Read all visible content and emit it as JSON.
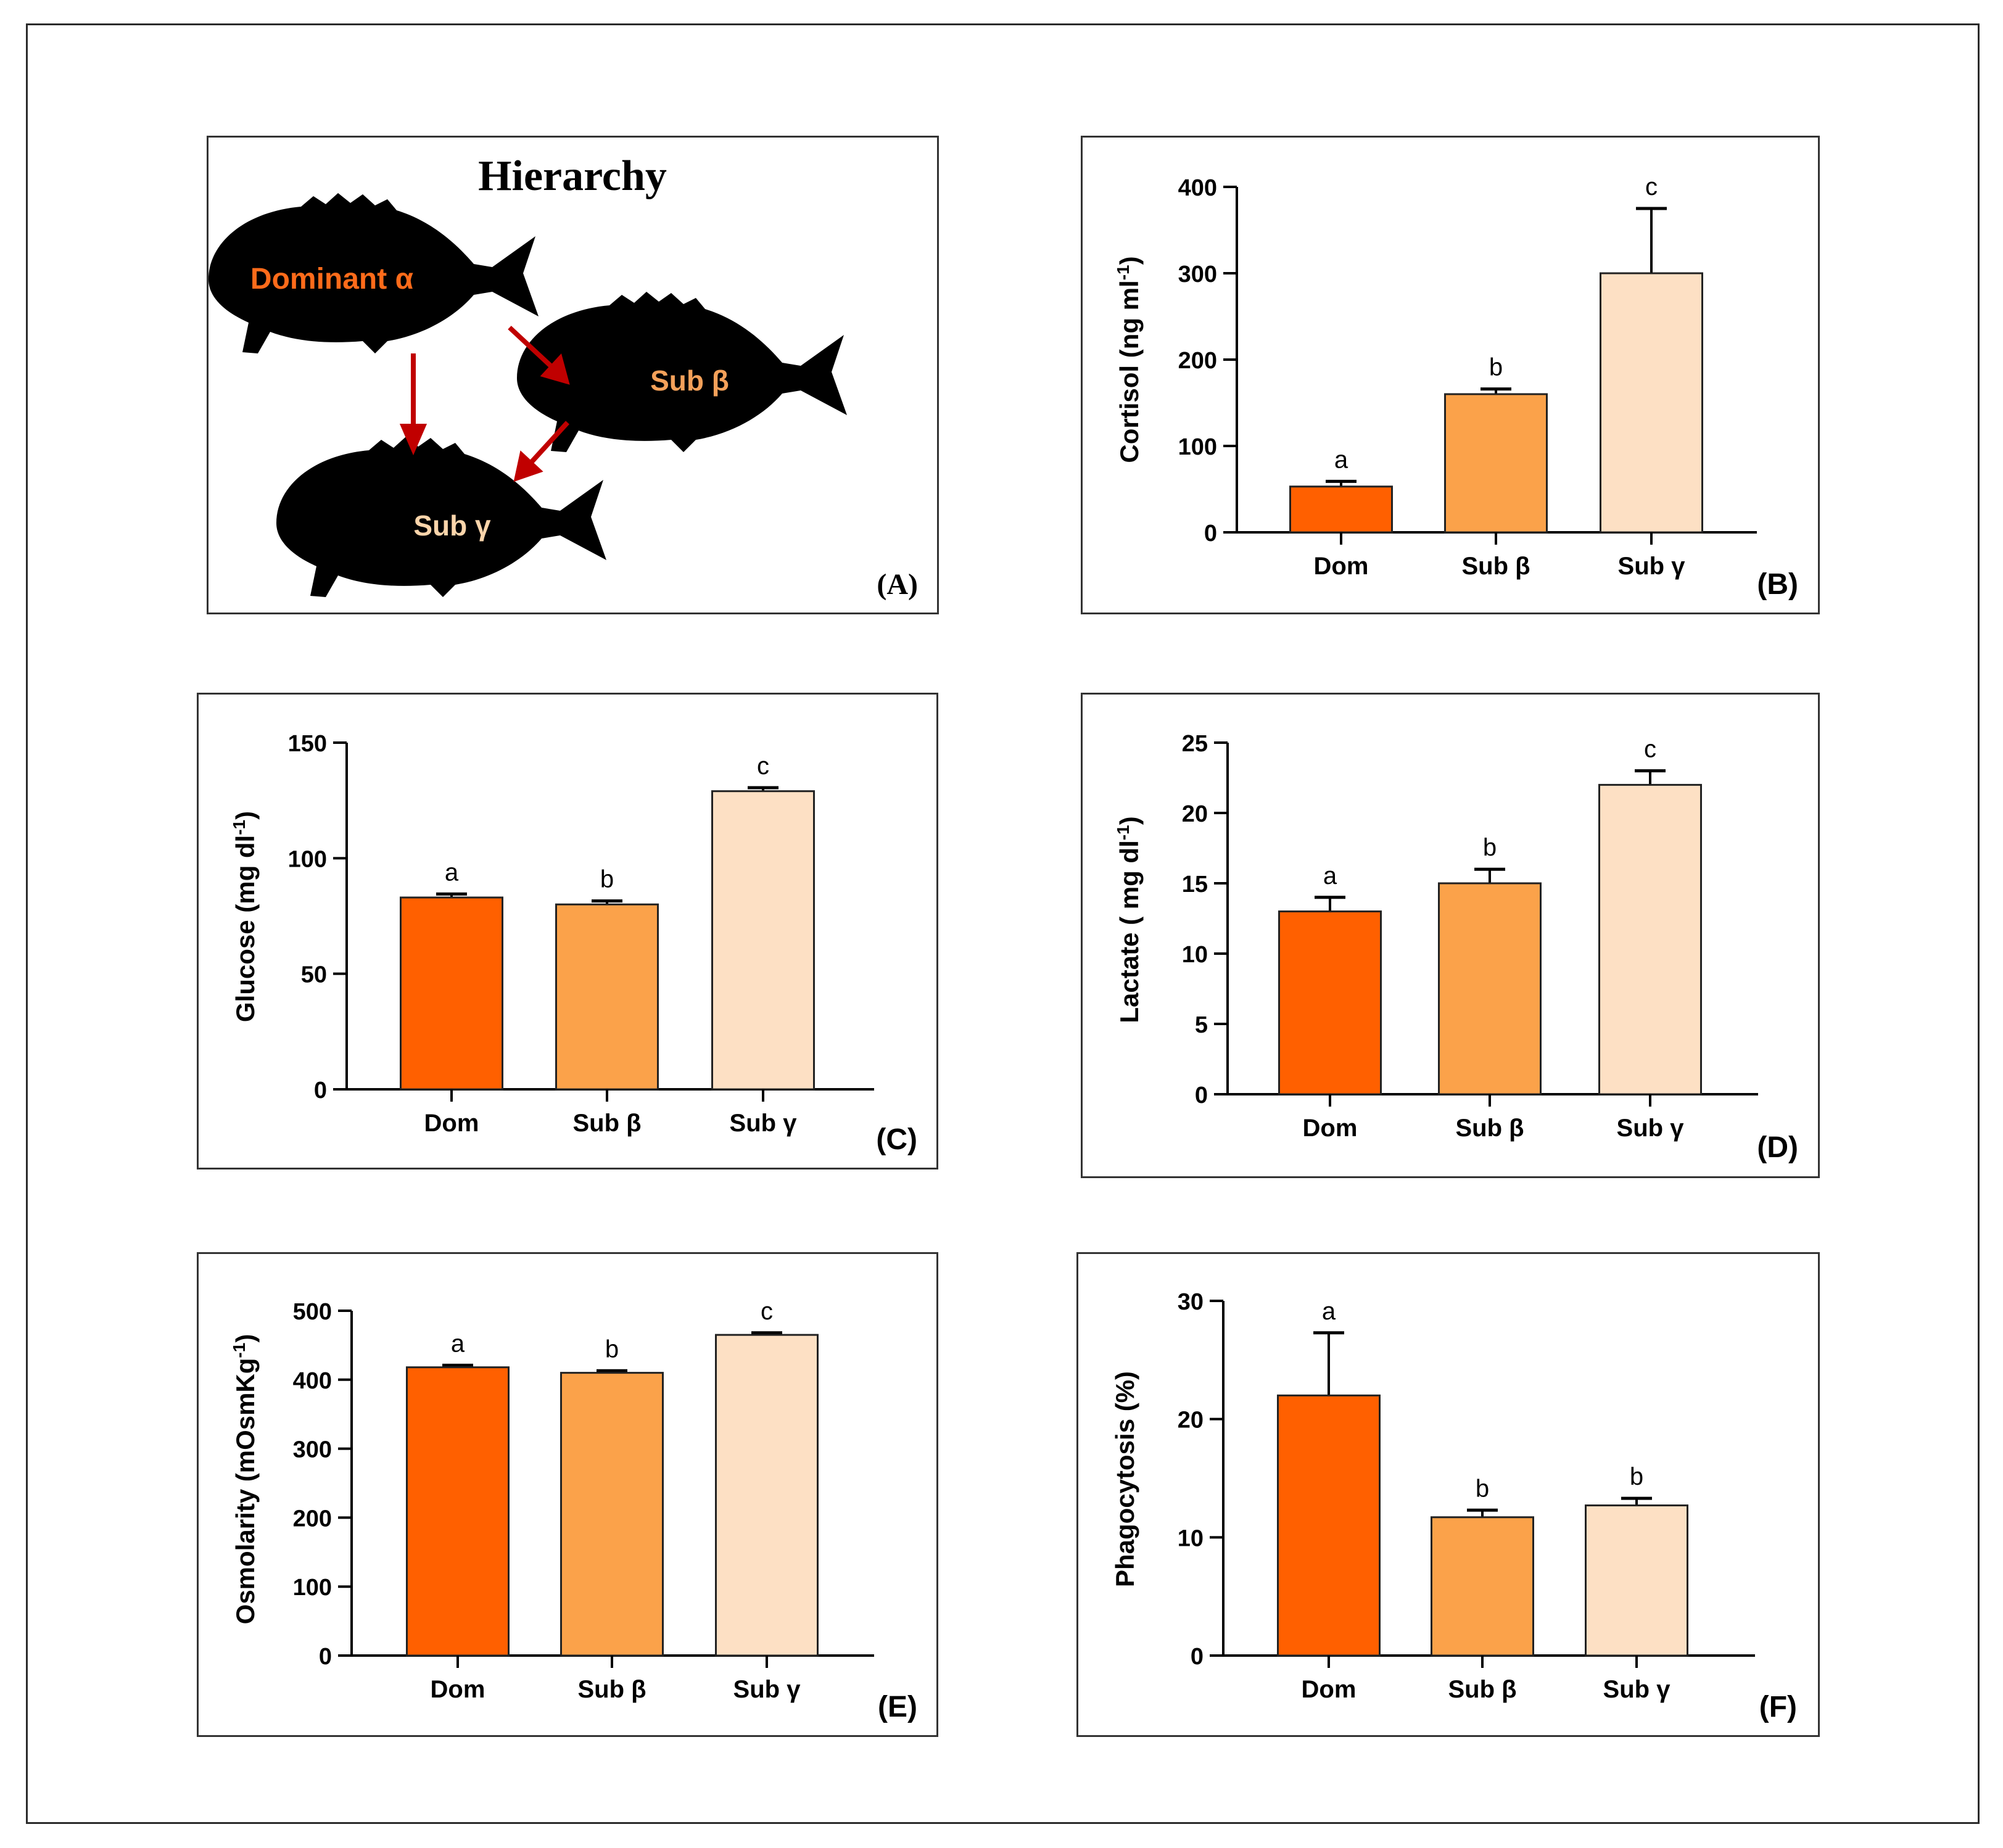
{
  "colors": {
    "dom": "#ff6000",
    "sub_beta": "#fba24a",
    "sub_gamma": "#fde0c4",
    "arrow": "#c00000",
    "fish": "#000000",
    "label_dom": "#ff6b1a",
    "label_beta": "#f4a15a",
    "label_gamma": "#fbd5ab"
  },
  "hierarchy": {
    "title": "Hierarchy",
    "dominant_label": "Dominant α",
    "sub_beta_label": "Sub β",
    "sub_gamma_label": "Sub γ",
    "panel_label": "(A)"
  },
  "chart_data": [
    {
      "panel": "(B)",
      "type": "bar",
      "categories": [
        "Dom",
        "Sub β",
        "Sub γ"
      ],
      "values": [
        53,
        160,
        300
      ],
      "errors": [
        6,
        6,
        75
      ],
      "significance": [
        "a",
        "b",
        "c"
      ],
      "ylabel_main": "Cortisol (ng ml",
      "ylabel_sup": "-1",
      "ylabel_end": ")",
      "ylim": [
        0,
        400
      ],
      "yticks": [
        0,
        100,
        200,
        300,
        400
      ]
    },
    {
      "panel": "(C)",
      "type": "bar",
      "categories": [
        "Dom",
        "Sub β",
        "Sub γ"
      ],
      "values": [
        83,
        80,
        129
      ],
      "errors": [
        1.5,
        1.5,
        1.5
      ],
      "significance": [
        "a",
        "b",
        "c"
      ],
      "ylabel_main": "Glucose (mg dl",
      "ylabel_sup": "-1",
      "ylabel_end": ")",
      "ylim": [
        0,
        150
      ],
      "yticks": [
        0,
        50,
        100,
        150
      ]
    },
    {
      "panel": "(D)",
      "type": "bar",
      "categories": [
        "Dom",
        "Sub β",
        "Sub γ"
      ],
      "values": [
        13,
        15,
        22
      ],
      "errors": [
        1,
        1,
        1
      ],
      "significance": [
        "a",
        "b",
        "c"
      ],
      "ylabel_main": "Lactate ( mg dl",
      "ylabel_sup": "-1",
      "ylabel_end": ")",
      "ylim": [
        0,
        25
      ],
      "yticks": [
        0,
        5,
        10,
        15,
        20,
        25
      ]
    },
    {
      "panel": "(E)",
      "type": "bar",
      "categories": [
        "Dom",
        "Sub β",
        "Sub γ"
      ],
      "values": [
        418,
        410,
        465
      ],
      "errors": [
        3,
        3,
        3
      ],
      "significance": [
        "a",
        "b",
        "c"
      ],
      "ylabel_main": "Osmolarity (mOsmKg",
      "ylabel_sup": "-1",
      "ylabel_end": ")",
      "ylim": [
        0,
        500
      ],
      "yticks": [
        0,
        100,
        200,
        300,
        400,
        500
      ]
    },
    {
      "panel": "(F)",
      "type": "bar",
      "categories": [
        "Dom",
        "Sub β",
        "Sub γ"
      ],
      "values": [
        22,
        11.7,
        12.7
      ],
      "errors": [
        5.3,
        0.6,
        0.6
      ],
      "significance": [
        "a",
        "b",
        "b"
      ],
      "ylabel_main": "Phagocytosis (%)",
      "ylabel_sup": "",
      "ylabel_end": "",
      "ylim": [
        0,
        30
      ],
      "yticks": [
        0,
        10,
        20,
        30
      ]
    }
  ]
}
